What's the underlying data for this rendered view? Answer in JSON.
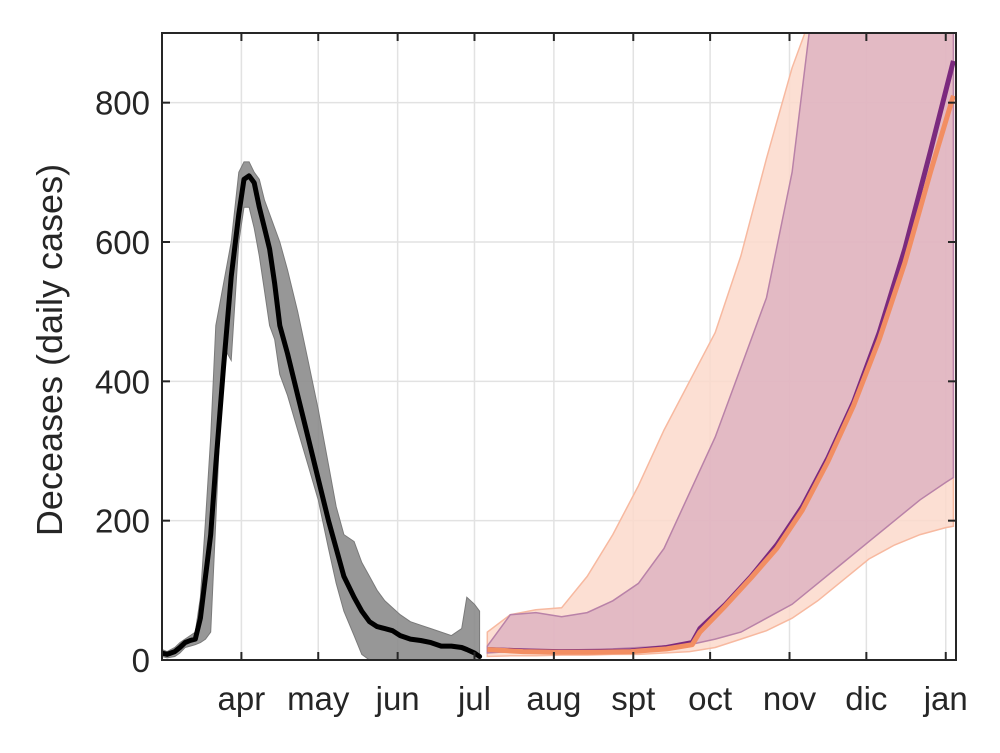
{
  "chart_data": {
    "type": "line",
    "title": "",
    "xlabel": "",
    "ylabel": "Deceases (daily cases)",
    "ylim": [
      0,
      900
    ],
    "xlim": [
      "2020-03-01",
      "2021-01-05"
    ],
    "grid": true,
    "colors": {
      "observed": "#000000",
      "observed_band": "#8c8c8c",
      "outer_band": "#fcd9cb",
      "outer_band_edge": "#f7b9a0",
      "inner_band": "#d8a9bd",
      "inner_band_edge": "#b982a8",
      "projection_a": "#7b2a7e",
      "projection_b": "#f28e62"
    },
    "x_ticks": [
      {
        "date": "2020-04-01",
        "label": "apr"
      },
      {
        "date": "2020-05-01",
        "label": "may"
      },
      {
        "date": "2020-06-01",
        "label": "jun"
      },
      {
        "date": "2020-07-01",
        "label": "jul"
      },
      {
        "date": "2020-08-01",
        "label": "aug"
      },
      {
        "date": "2020-09-01",
        "label": "spt"
      },
      {
        "date": "2020-10-01",
        "label": "oct"
      },
      {
        "date": "2020-11-01",
        "label": "nov"
      },
      {
        "date": "2020-12-01",
        "label": "dic"
      },
      {
        "date": "2021-01-01",
        "label": "jan"
      }
    ],
    "y_ticks": [
      0,
      200,
      400,
      600,
      800
    ],
    "series": [
      {
        "role": "observed",
        "x": [
          "2020-03-01",
          "2020-03-03",
          "2020-03-06",
          "2020-03-08",
          "2020-03-10",
          "2020-03-12",
          "2020-03-14",
          "2020-03-16",
          "2020-03-18",
          "2020-03-20",
          "2020-03-22",
          "2020-03-25",
          "2020-03-28",
          "2020-03-31",
          "2020-04-02",
          "2020-04-04",
          "2020-04-06",
          "2020-04-08",
          "2020-04-10",
          "2020-04-12",
          "2020-04-14",
          "2020-04-16",
          "2020-04-19",
          "2020-04-23",
          "2020-04-27",
          "2020-05-01",
          "2020-05-05",
          "2020-05-08",
          "2020-05-11",
          "2020-05-15",
          "2020-05-18",
          "2020-05-21",
          "2020-05-24",
          "2020-05-27",
          "2020-05-30",
          "2020-06-02",
          "2020-06-06",
          "2020-06-10",
          "2020-06-14",
          "2020-06-18",
          "2020-06-22",
          "2020-06-26",
          "2020-06-28",
          "2020-07-01",
          "2020-07-03"
        ],
        "values": [
          10,
          8,
          12,
          18,
          25,
          28,
          30,
          60,
          120,
          180,
          280,
          420,
          550,
          640,
          690,
          695,
          685,
          650,
          620,
          590,
          540,
          480,
          440,
          380,
          320,
          260,
          200,
          160,
          120,
          90,
          70,
          55,
          48,
          45,
          42,
          35,
          30,
          28,
          25,
          20,
          20,
          18,
          15,
          10,
          5
        ]
      },
      {
        "role": "observed_band",
        "x": [
          "2020-03-01",
          "2020-03-03",
          "2020-03-06",
          "2020-03-08",
          "2020-03-10",
          "2020-03-12",
          "2020-03-14",
          "2020-03-16",
          "2020-03-18",
          "2020-03-20",
          "2020-03-22",
          "2020-03-25",
          "2020-03-28",
          "2020-03-31",
          "2020-04-02",
          "2020-04-04",
          "2020-04-06",
          "2020-04-08",
          "2020-04-10",
          "2020-04-12",
          "2020-04-14",
          "2020-04-16",
          "2020-04-19",
          "2020-04-23",
          "2020-04-27",
          "2020-05-01",
          "2020-05-05",
          "2020-05-08",
          "2020-05-11",
          "2020-05-15",
          "2020-05-18",
          "2020-05-21",
          "2020-05-24",
          "2020-05-27",
          "2020-05-30",
          "2020-06-02",
          "2020-06-06",
          "2020-06-10",
          "2020-06-14",
          "2020-06-18",
          "2020-06-22",
          "2020-06-26",
          "2020-06-28",
          "2020-07-01",
          "2020-07-03"
        ],
        "lower": [
          5,
          3,
          5,
          10,
          18,
          20,
          22,
          25,
          30,
          40,
          200,
          450,
          430,
          600,
          650,
          650,
          620,
          580,
          530,
          480,
          460,
          410,
          380,
          330,
          280,
          230,
          160,
          110,
          70,
          35,
          8,
          0,
          0,
          0,
          0,
          0,
          0,
          0,
          0,
          0,
          0,
          0,
          0,
          0,
          0
        ],
        "upper": [
          15,
          12,
          18,
          25,
          30,
          35,
          40,
          90,
          200,
          320,
          480,
          540,
          600,
          700,
          715,
          715,
          700,
          690,
          660,
          640,
          620,
          600,
          560,
          500,
          430,
          360,
          280,
          220,
          180,
          170,
          140,
          120,
          100,
          85,
          75,
          65,
          55,
          50,
          45,
          40,
          35,
          45,
          90,
          80,
          70
        ]
      },
      {
        "role": "outer_band",
        "x": [
          "2020-07-06",
          "2020-07-15",
          "2020-07-25",
          "2020-08-04",
          "2020-08-14",
          "2020-08-24",
          "2020-09-03",
          "2020-09-13",
          "2020-09-23",
          "2020-10-03",
          "2020-10-13",
          "2020-10-23",
          "2020-11-02",
          "2020-11-12",
          "2020-11-22",
          "2020-12-02",
          "2020-12-12",
          "2020-12-22",
          "2021-01-01",
          "2021-01-04"
        ],
        "lower": [
          5,
          6,
          6,
          7,
          7,
          8,
          8,
          10,
          12,
          18,
          30,
          42,
          60,
          85,
          115,
          145,
          165,
          180,
          190,
          192
        ],
        "upper": [
          40,
          65,
          72,
          75,
          120,
          180,
          250,
          330,
          400,
          470,
          580,
          720,
          850,
          950,
          1000,
          1000,
          1000,
          1000,
          1000,
          1000
        ]
      },
      {
        "role": "inner_band",
        "x": [
          "2020-07-06",
          "2020-07-15",
          "2020-07-25",
          "2020-08-04",
          "2020-08-14",
          "2020-08-24",
          "2020-09-03",
          "2020-09-13",
          "2020-09-23",
          "2020-10-03",
          "2020-10-13",
          "2020-10-23",
          "2020-11-02",
          "2020-11-12",
          "2020-11-22",
          "2020-12-02",
          "2020-12-12",
          "2020-12-22",
          "2021-01-01",
          "2021-01-04"
        ],
        "lower": [
          10,
          12,
          13,
          14,
          15,
          16,
          18,
          20,
          22,
          30,
          40,
          60,
          80,
          110,
          140,
          170,
          200,
          230,
          255,
          262
        ],
        "upper": [
          20,
          65,
          68,
          62,
          68,
          85,
          110,
          160,
          240,
          320,
          420,
          520,
          700,
          1000,
          1000,
          1000,
          1000,
          1000,
          1000,
          1000
        ]
      },
      {
        "role": "projection_a",
        "x": [
          "2020-07-06",
          "2020-07-20",
          "2020-08-03",
          "2020-08-17",
          "2020-08-31",
          "2020-09-14",
          "2020-09-24",
          "2020-09-27",
          "2020-10-07",
          "2020-10-17",
          "2020-10-27",
          "2020-11-06",
          "2020-11-16",
          "2020-11-26",
          "2020-12-06",
          "2020-12-16",
          "2020-12-26",
          "2021-01-04"
        ],
        "values": [
          15,
          13,
          12,
          12,
          13,
          18,
          25,
          45,
          80,
          120,
          165,
          220,
          290,
          370,
          470,
          590,
          730,
          860
        ]
      },
      {
        "role": "projection_b",
        "x": [
          "2020-07-06",
          "2020-07-20",
          "2020-08-03",
          "2020-08-17",
          "2020-08-31",
          "2020-09-14",
          "2020-09-24",
          "2020-09-27",
          "2020-10-07",
          "2020-10-17",
          "2020-10-27",
          "2020-11-06",
          "2020-11-16",
          "2020-11-26",
          "2020-12-06",
          "2020-12-16",
          "2020-12-26",
          "2021-01-04"
        ],
        "values": [
          15,
          12,
          11,
          11,
          12,
          16,
          22,
          40,
          78,
          118,
          160,
          215,
          285,
          365,
          460,
          570,
          700,
          810
        ]
      }
    ]
  }
}
